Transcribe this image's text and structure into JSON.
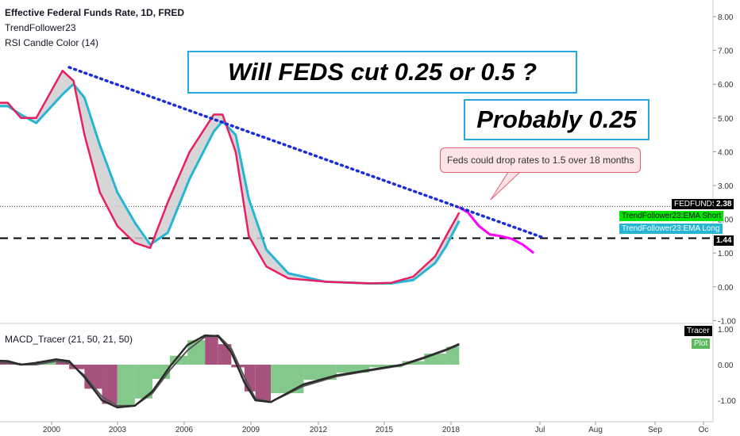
{
  "header": {
    "title": "Effective Federal Funds Rate, 1D, FRED",
    "indicator1": "TrendFollower23",
    "indicator2": "RSI Candle Color (14)",
    "macd_title": "MACD_Tracer (21, 50, 21, 50)"
  },
  "annotations": {
    "headline": "Will FEDS cut 0.25    or    0.5  ?",
    "answer": "Probably 0.25",
    "note": "Feds could drop rates to 1.5 over 18 months"
  },
  "price_tags": {
    "fedfunds_label": "FEDFUNDS",
    "fedfunds_value": "2.38",
    "ema_short": "TrendFollower23:EMA Short",
    "ema_long": "TrendFollower23:EMA Long",
    "line_value": "1.44",
    "tracer": "Tracer",
    "plot": "Plot"
  },
  "colors": {
    "ema_short": "#e91e63",
    "ema_long": "#26b6d4",
    "fill": "#cfcfcf",
    "projection": "#ff00ff",
    "trendline": "#1a2ed8",
    "macd_up": "#84c98b",
    "macd_down": "#a8527e",
    "tag_green": "#00e600",
    "tag_cyan": "#26b6d4"
  },
  "chart_data": {
    "type": "line",
    "y_axis_ticks": [
      "8.00",
      "7.00",
      "6.00",
      "5.00",
      "4.00",
      "3.00",
      "2.00",
      "1.00",
      "0.00",
      "-1.00"
    ],
    "ylim": [
      -1,
      8.3
    ],
    "macd_axis_ticks": [
      "1.00",
      "0.00",
      "-1.00"
    ],
    "x_axis_ticks": [
      "2000",
      "2003",
      "2006",
      "2009",
      "2012",
      "2015",
      "2018",
      "Jul",
      "Aug",
      "Sep",
      "Oc"
    ],
    "series": [
      {
        "name": "TrendFollower23:EMA Short",
        "x": [
          1997.0,
          1998.0,
          1998.6,
          1999.3,
          2000.5,
          2001.0,
          2001.5,
          2002.2,
          2003.0,
          2003.8,
          2004.5,
          2005.3,
          2006.3,
          2007.4,
          2007.8,
          2008.4,
          2009.0,
          2009.8,
          2010.8,
          2012.5,
          2014.5,
          2015.5,
          2016.5,
          2017.5,
          2018.0,
          2018.6
        ],
        "y": [
          5.45,
          5.45,
          5.0,
          5.0,
          6.4,
          6.1,
          4.5,
          2.8,
          1.8,
          1.3,
          1.15,
          2.5,
          4.0,
          5.1,
          5.1,
          4.0,
          1.5,
          0.6,
          0.25,
          0.15,
          0.1,
          0.12,
          0.3,
          0.9,
          1.5,
          2.2
        ]
      },
      {
        "name": "TrendFollower23:EMA Long",
        "x": [
          1997.0,
          1998.0,
          1998.6,
          1999.3,
          2000.5,
          2001.0,
          2001.5,
          2002.2,
          2003.0,
          2003.8,
          2004.5,
          2005.3,
          2006.3,
          2007.4,
          2007.8,
          2008.4,
          2009.0,
          2009.8,
          2010.8,
          2012.5,
          2014.5,
          2015.5,
          2016.5,
          2017.5,
          2018.0,
          2018.6
        ],
        "y": [
          5.35,
          5.35,
          5.1,
          4.85,
          5.7,
          6.0,
          5.6,
          4.2,
          2.8,
          1.9,
          1.25,
          1.6,
          3.2,
          4.6,
          4.9,
          4.5,
          2.6,
          1.1,
          0.4,
          0.15,
          0.1,
          0.1,
          0.2,
          0.7,
          1.2,
          1.95
        ]
      },
      {
        "name": "Projection",
        "x": [
          2018.6,
          2019.0,
          2019.5,
          2020.0,
          2020.5,
          2021.0,
          2021.5,
          2022.0
        ],
        "y": [
          2.35,
          2.2,
          1.8,
          1.55,
          1.5,
          1.42,
          1.25,
          1.0
        ]
      }
    ],
    "trendline": {
      "x": [
        2000.8,
        2022.5
      ],
      "y": [
        6.5,
        1.44
      ]
    },
    "horizontal_lines": [
      2.38,
      1.44
    ],
    "macd": {
      "x": [
        1997.0,
        1998.0,
        1998.6,
        1999.3,
        2000.2,
        2000.8,
        2001.5,
        2002.3,
        2003.0,
        2003.8,
        2004.6,
        2005.4,
        2006.2,
        2007.0,
        2007.6,
        2008.2,
        2008.8,
        2009.3,
        2010.0,
        2011.5,
        2013.0,
        2014.5,
        2016.0,
        2017.0,
        2018.0,
        2018.6
      ],
      "tracer": [
        0.12,
        0.1,
        0.0,
        0.05,
        0.15,
        0.1,
        -0.35,
        -1.0,
        -1.2,
        -1.15,
        -0.75,
        -0.05,
        0.55,
        0.82,
        0.8,
        0.35,
        -0.5,
        -1.0,
        -1.05,
        -0.55,
        -0.3,
        -0.15,
        0.0,
        0.2,
        0.42,
        0.58
      ],
      "plot": [
        0.05,
        0.05,
        0.0,
        0.0,
        0.1,
        0.05,
        -0.3,
        -0.9,
        -1.15,
        -1.15,
        -0.8,
        -0.15,
        0.4,
        0.78,
        0.82,
        0.45,
        -0.35,
        -0.95,
        -1.05,
        -0.6,
        -0.33,
        -0.17,
        -0.02,
        0.18,
        0.4,
        0.55
      ]
    }
  }
}
